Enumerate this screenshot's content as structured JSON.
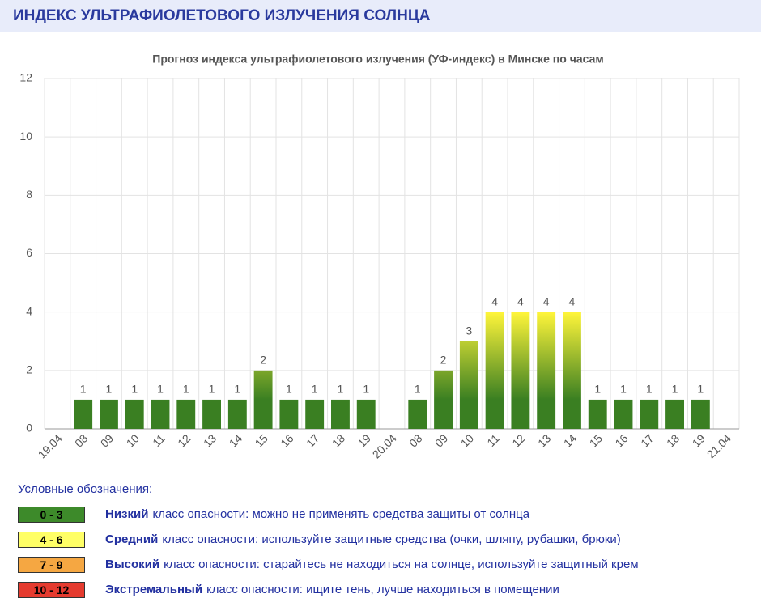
{
  "header": {
    "title": "ИНДЕКС УЛЬТРАФИОЛЕТОВОГО ИЗЛУЧЕНИЯ СОЛНЦА"
  },
  "chart_data": {
    "type": "bar",
    "title": "Прогноз индекса ультрафиолетового излучения (УФ-индекс) в Минске по часам",
    "categories": [
      "19.04",
      "08",
      "09",
      "10",
      "11",
      "12",
      "13",
      "14",
      "15",
      "16",
      "17",
      "18",
      "19",
      "20.04",
      "08",
      "09",
      "10",
      "11",
      "12",
      "13",
      "14",
      "15",
      "16",
      "17",
      "18",
      "19",
      "21.04"
    ],
    "values": [
      null,
      1,
      1,
      1,
      1,
      1,
      1,
      1,
      2,
      1,
      1,
      1,
      1,
      null,
      1,
      2,
      3,
      4,
      4,
      4,
      4,
      1,
      1,
      1,
      1,
      1,
      null
    ],
    "ylim": [
      0,
      12
    ],
    "yticks": [
      0,
      2,
      4,
      6,
      8,
      10,
      12
    ],
    "grid": true,
    "color": "#3a7f22",
    "color_high": "#fff53a"
  },
  "legend": {
    "title": "Условные обозначения:",
    "items": [
      {
        "range": "0 - 3",
        "color": "#3d8a2a",
        "level": "Низкий",
        "text": "класс опасности: можно не применять средства защиты от солнца"
      },
      {
        "range": "4 - 6",
        "color": "#ffff66",
        "level": "Средний",
        "text": "класс опасности: используйте защитные средства (очки, шляпу, рубашки, брюки)"
      },
      {
        "range": "7 - 9",
        "color": "#f5a742",
        "level": "Высокий",
        "text": "класс опасности: старайтесь не находиться на солнце, используйте защитный крем"
      },
      {
        "range": "10 - 12",
        "color": "#e53b2f",
        "level": "Экстремальный",
        "text": "класс опасности: ищите тень, лучше находиться в помещении"
      }
    ]
  }
}
